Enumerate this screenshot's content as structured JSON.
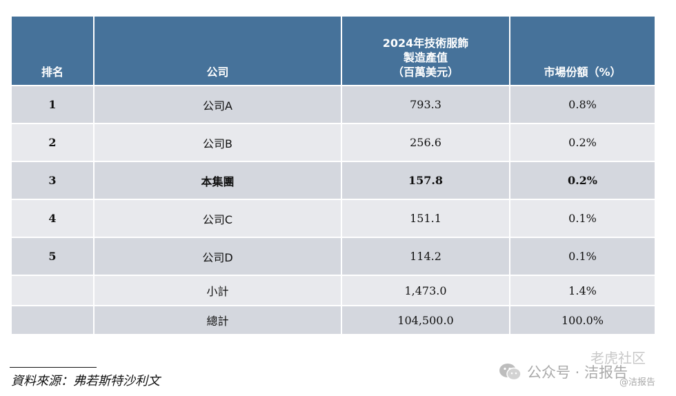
{
  "chart_data": {
    "type": "table",
    "columns": [
      "排名",
      "公司",
      "2024年技術服飾製造產值（百萬美元）",
      "市場份額（%）"
    ],
    "rows": [
      [
        "1",
        "公司A",
        "793.3",
        "0.8%"
      ],
      [
        "2",
        "公司B",
        "256.6",
        "0.2%"
      ],
      [
        "3",
        "本集團",
        "157.8",
        "0.2%"
      ],
      [
        "4",
        "公司C",
        "151.1",
        "0.1%"
      ],
      [
        "5",
        "公司D",
        "114.2",
        "0.1%"
      ],
      [
        "",
        "小計",
        "1,473.0",
        "1.4%"
      ],
      [
        "",
        "總計",
        "104,500.0",
        "100.0%"
      ]
    ],
    "highlighted_row": "本集團"
  },
  "table": {
    "headers": {
      "rank": "排名",
      "company": "公司",
      "value_line1": "2024年技術服飾",
      "value_line2": "製造產值",
      "value_line3": "（百萬美元）",
      "share": "市場份額（%）"
    },
    "rows": [
      {
        "rank": "1",
        "company": "公司A",
        "value": "793.3",
        "share": "0.8%"
      },
      {
        "rank": "2",
        "company": "公司B",
        "value": "256.6",
        "share": "0.2%"
      },
      {
        "rank": "3",
        "company": "本集團",
        "value": "157.8",
        "share": "0.2%"
      },
      {
        "rank": "4",
        "company": "公司C",
        "value": "151.1",
        "share": "0.1%"
      },
      {
        "rank": "5",
        "company": "公司D",
        "value": "114.2",
        "share": "0.1%"
      },
      {
        "rank": "",
        "company": "小計",
        "value": "1,473.0",
        "share": "1.4%"
      },
      {
        "rank": "",
        "company": "總計",
        "value": "104,500.0",
        "share": "100.0%"
      }
    ]
  },
  "source": "資料來源：弗若斯特沙利文",
  "watermark": {
    "account": "公众号 · 洁报告",
    "community": "老虎社区",
    "handle": "@洁报告"
  },
  "colors": {
    "header_bg": "#46729a",
    "row_dark": "#d4d7de",
    "row_light": "#e8e9ed",
    "header_text": "#ffffff"
  }
}
